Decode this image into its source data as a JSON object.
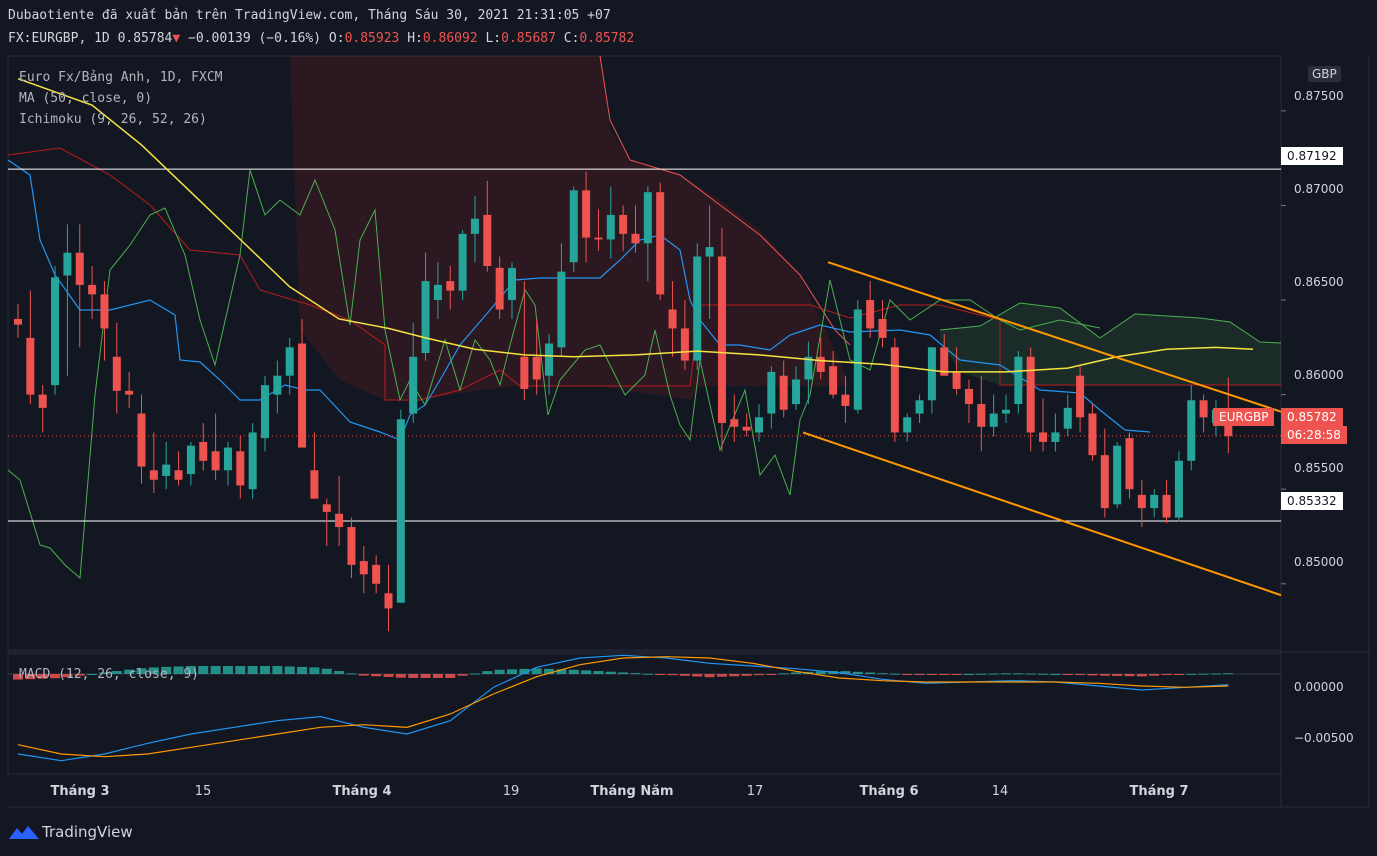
{
  "header": {
    "line1": "Dubaotiente đã xuất bản trên TradingView.com, Tháng Sáu 30, 2021 21:31:05 +07",
    "symbol": "FX:EURGBP, 1D",
    "last": "0.85784",
    "change": "−0.00139 (−0.16%)",
    "o_label": "O:",
    "o": "0.85923",
    "h_label": "H:",
    "h": "0.86092",
    "l_label": "L:",
    "l": "0.85687",
    "c_label": "C:",
    "c": "0.85782"
  },
  "legend": {
    "pair": "Euro Fx/Bảng Anh, 1D, FXCM",
    "ma": "MA (50, close, 0)",
    "ichimoku": "Ichimoku (9, 26, 52, 26)",
    "macd": "MACD (12, 26, close, 9)"
  },
  "price_axis": {
    "currency": "GBP",
    "ticks": [
      "0.87500",
      "0.87000",
      "0.86500",
      "0.86000",
      "0.85500",
      "0.85000"
    ],
    "macd_ticks": [
      "0.00000",
      "−0.00500"
    ],
    "h_line_1": "0.87192",
    "h_line_2": "0.85332",
    "current_symbol": "EURGBP",
    "current_price": "0.85782",
    "countdown": "06:28:58"
  },
  "time_axis": [
    {
      "label": "Tháng 3",
      "bold": true
    },
    {
      "label": "15",
      "bold": false
    },
    {
      "label": "Tháng 4",
      "bold": true
    },
    {
      "label": "19",
      "bold": false
    },
    {
      "label": "Tháng Năm",
      "bold": true
    },
    {
      "label": "17",
      "bold": false
    },
    {
      "label": "Tháng 6",
      "bold": true
    },
    {
      "label": "14",
      "bold": false
    },
    {
      "label": "Tháng 7",
      "bold": true
    }
  ],
  "footer": {
    "brand": "TradingView"
  },
  "colors": {
    "up": "#26a69a",
    "down": "#ef5350",
    "ma": "#f5e342",
    "tenkan": "#2196f3",
    "kijun": "#b71c1c",
    "lagging": "#4caf50",
    "channel": "#ff9800",
    "background": "#131722"
  },
  "chart_data": {
    "type": "candlestick",
    "symbol": "EURGBP",
    "timeframe": "1D",
    "period": "Feb 2021 – Jun 30, 2021",
    "ylim": [
      0.8465,
      0.8779
    ],
    "horizontal_levels": [
      0.87192,
      0.85332,
      0.8595
    ],
    "last_price": 0.85782,
    "candles": [
      [
        0.864,
        0.8648,
        0.863,
        0.8637
      ],
      [
        0.863,
        0.8655,
        0.8595,
        0.86
      ],
      [
        0.86,
        0.8605,
        0.858,
        0.8593
      ],
      [
        0.8605,
        0.8668,
        0.86,
        0.8662
      ],
      [
        0.8663,
        0.869,
        0.861,
        0.8675
      ],
      [
        0.8675,
        0.869,
        0.8625,
        0.8658
      ],
      [
        0.8658,
        0.8668,
        0.864,
        0.8653
      ],
      [
        0.8653,
        0.866,
        0.8618,
        0.8635
      ],
      [
        0.862,
        0.8638,
        0.859,
        0.8602
      ],
      [
        0.8602,
        0.8612,
        0.8593,
        0.86
      ],
      [
        0.859,
        0.86,
        0.8553,
        0.8562
      ],
      [
        0.856,
        0.858,
        0.8548,
        0.8555
      ],
      [
        0.8557,
        0.8575,
        0.855,
        0.8563
      ],
      [
        0.856,
        0.857,
        0.8552,
        0.8555
      ],
      [
        0.8558,
        0.8575,
        0.8552,
        0.8573
      ],
      [
        0.8575,
        0.8585,
        0.856,
        0.8565
      ],
      [
        0.857,
        0.859,
        0.8555,
        0.856
      ],
      [
        0.856,
        0.8575,
        0.8552,
        0.8572
      ],
      [
        0.857,
        0.8578,
        0.8545,
        0.8552
      ],
      [
        0.855,
        0.8585,
        0.8545,
        0.858
      ],
      [
        0.8577,
        0.861,
        0.857,
        0.8605
      ],
      [
        0.86,
        0.8618,
        0.859,
        0.861
      ],
      [
        0.861,
        0.863,
        0.86,
        0.8625
      ],
      [
        0.8627,
        0.864,
        0.8575,
        0.8572
      ],
      [
        0.856,
        0.858,
        0.8547,
        0.8545
      ],
      [
        0.8542,
        0.8545,
        0.852,
        0.8538
      ],
      [
        0.8537,
        0.8557,
        0.852,
        0.853
      ],
      [
        0.853,
        0.8535,
        0.8503,
        0.851
      ],
      [
        0.8512,
        0.852,
        0.8495,
        0.8505
      ],
      [
        0.851,
        0.8515,
        0.8495,
        0.85
      ],
      [
        0.8495,
        0.851,
        0.8475,
        0.8487
      ],
      [
        0.849,
        0.8592,
        0.849,
        0.8587
      ],
      [
        0.859,
        0.8638,
        0.8585,
        0.862
      ],
      [
        0.8622,
        0.8675,
        0.8618,
        0.866
      ],
      [
        0.865,
        0.867,
        0.864,
        0.8658
      ],
      [
        0.866,
        0.8668,
        0.8645,
        0.8655
      ],
      [
        0.8655,
        0.8687,
        0.865,
        0.8685
      ],
      [
        0.8685,
        0.8705,
        0.867,
        0.8693
      ],
      [
        0.8695,
        0.8713,
        0.8665,
        0.8668
      ],
      [
        0.8667,
        0.8673,
        0.864,
        0.8645
      ],
      [
        0.865,
        0.867,
        0.864,
        0.8667
      ],
      [
        0.862,
        0.866,
        0.8597,
        0.8603
      ],
      [
        0.862,
        0.864,
        0.86,
        0.8608
      ],
      [
        0.861,
        0.8632,
        0.86,
        0.8627
      ],
      [
        0.8625,
        0.868,
        0.862,
        0.8665
      ],
      [
        0.867,
        0.871,
        0.8665,
        0.8708
      ],
      [
        0.8708,
        0.8718,
        0.867,
        0.8683
      ],
      [
        0.8683,
        0.8698,
        0.8676,
        0.8682
      ],
      [
        0.8682,
        0.871,
        0.8672,
        0.8695
      ],
      [
        0.8695,
        0.87,
        0.8676,
        0.8685
      ],
      [
        0.8685,
        0.87,
        0.8675,
        0.868
      ],
      [
        0.868,
        0.871,
        0.866,
        0.8707
      ],
      [
        0.8707,
        0.8712,
        0.865,
        0.8653
      ],
      [
        0.8645,
        0.866,
        0.862,
        0.8635
      ],
      [
        0.8635,
        0.865,
        0.8613,
        0.8618
      ],
      [
        0.8618,
        0.868,
        0.8613,
        0.8673
      ],
      [
        0.8673,
        0.87,
        0.864,
        0.8678
      ],
      [
        0.8673,
        0.8688,
        0.857,
        0.8585
      ],
      [
        0.8587,
        0.86,
        0.8575,
        0.8583
      ],
      [
        0.8583,
        0.859,
        0.8578,
        0.8581
      ],
      [
        0.858,
        0.8595,
        0.8575,
        0.8588
      ],
      [
        0.859,
        0.8615,
        0.8582,
        0.8612
      ],
      [
        0.861,
        0.8618,
        0.8588,
        0.8592
      ],
      [
        0.8595,
        0.8615,
        0.8592,
        0.8608
      ],
      [
        0.8608,
        0.8628,
        0.8595,
        0.862
      ],
      [
        0.862,
        0.863,
        0.8608,
        0.8612
      ],
      [
        0.8615,
        0.8623,
        0.8598,
        0.86
      ],
      [
        0.86,
        0.861,
        0.8585,
        0.8594
      ],
      [
        0.8592,
        0.865,
        0.859,
        0.8645
      ],
      [
        0.865,
        0.866,
        0.863,
        0.8635
      ],
      [
        0.864,
        0.865,
        0.8625,
        0.863
      ],
      [
        0.8625,
        0.863,
        0.8575,
        0.858
      ],
      [
        0.858,
        0.859,
        0.8575,
        0.8588
      ],
      [
        0.859,
        0.86,
        0.8585,
        0.8597
      ],
      [
        0.8597,
        0.8625,
        0.859,
        0.8625
      ],
      [
        0.8625,
        0.8632,
        0.861,
        0.861
      ],
      [
        0.8612,
        0.8625,
        0.86,
        0.8603
      ],
      [
        0.8603,
        0.8608,
        0.8585,
        0.8595
      ],
      [
        0.8595,
        0.861,
        0.857,
        0.8583
      ],
      [
        0.8583,
        0.86,
        0.8578,
        0.859
      ],
      [
        0.859,
        0.86,
        0.8585,
        0.8592
      ],
      [
        0.8595,
        0.8623,
        0.859,
        0.862
      ],
      [
        0.862,
        0.8625,
        0.857,
        0.858
      ],
      [
        0.858,
        0.8598,
        0.857,
        0.8575
      ],
      [
        0.8575,
        0.859,
        0.857,
        0.858
      ],
      [
        0.8582,
        0.86,
        0.8578,
        0.8593
      ],
      [
        0.861,
        0.8615,
        0.858,
        0.8588
      ],
      [
        0.859,
        0.8595,
        0.8565,
        0.8568
      ],
      [
        0.8568,
        0.8582,
        0.8535,
        0.854
      ],
      [
        0.8542,
        0.8575,
        0.854,
        0.8573
      ],
      [
        0.8577,
        0.858,
        0.8545,
        0.855
      ],
      [
        0.8547,
        0.8555,
        0.853,
        0.854
      ],
      [
        0.854,
        0.855,
        0.8535,
        0.8547
      ],
      [
        0.8547,
        0.8555,
        0.8532,
        0.8535
      ],
      [
        0.8535,
        0.857,
        0.8533,
        0.8565
      ],
      [
        0.8565,
        0.8605,
        0.856,
        0.8597
      ],
      [
        0.8597,
        0.86,
        0.858,
        0.8588
      ],
      [
        0.8585,
        0.8597,
        0.8578,
        0.8592
      ],
      [
        0.8592,
        0.8609,
        0.8569,
        0.8578
      ]
    ],
    "moving_average_50": [
      [
        0,
        0.8767
      ],
      [
        12,
        0.8753
      ],
      [
        20,
        0.8732
      ],
      [
        28,
        0.8707
      ],
      [
        36,
        0.8682
      ],
      [
        44,
        0.8657
      ],
      [
        52,
        0.864
      ],
      [
        60,
        0.8635
      ],
      [
        66,
        0.863
      ],
      [
        74,
        0.8624
      ],
      [
        82,
        0.8621
      ],
      [
        90,
        0.862
      ],
      [
        100,
        0.8621
      ],
      [
        110,
        0.8623
      ],
      [
        120,
        0.8621
      ],
      [
        130,
        0.8618
      ],
      [
        140,
        0.8616
      ],
      [
        150,
        0.8612
      ],
      [
        160,
        0.8612
      ],
      [
        170,
        0.8614
      ],
      [
        178,
        0.862
      ],
      [
        186,
        0.8624
      ],
      [
        194,
        0.8625
      ],
      [
        200,
        0.8624
      ]
    ],
    "ichimoku_window": [
      "0.8770",
      "0.8620"
    ],
    "trend_channel": {
      "upper": [
        [
          0.867,
          0.8591
        ]
      ],
      "lower": [
        [
          0.858,
          0.8494
        ]
      ]
    },
    "macd": {
      "ylim": [
        -0.0075,
        0.0015
      ],
      "macd_line": [
        -0.006,
        -0.0065,
        -0.006,
        -0.0052,
        -0.0045,
        -0.004,
        -0.0035,
        -0.0032,
        -0.004,
        -0.0045,
        -0.0035,
        -0.001,
        0.0005,
        0.0012,
        0.0014,
        0.0012,
        0.0008,
        0.0006,
        0.0004,
        0.0001,
        -0.0004,
        -0.0007,
        -0.0006,
        -0.0005,
        -0.0006,
        -0.0009,
        -0.0012,
        -0.001,
        -0.0008
      ],
      "signal_line": [
        -0.0053,
        -0.006,
        -0.0062,
        -0.006,
        -0.0055,
        -0.005,
        -0.0045,
        -0.004,
        -0.0038,
        -0.004,
        -0.003,
        -0.0015,
        -0.0002,
        0.0007,
        0.0012,
        0.0013,
        0.0012,
        0.0008,
        0.0002,
        -0.0003,
        -0.0005,
        -0.0006,
        -0.0006,
        -0.0006,
        -0.0006,
        -0.0007,
        -0.0009,
        -0.001,
        -0.0009
      ]
    }
  }
}
